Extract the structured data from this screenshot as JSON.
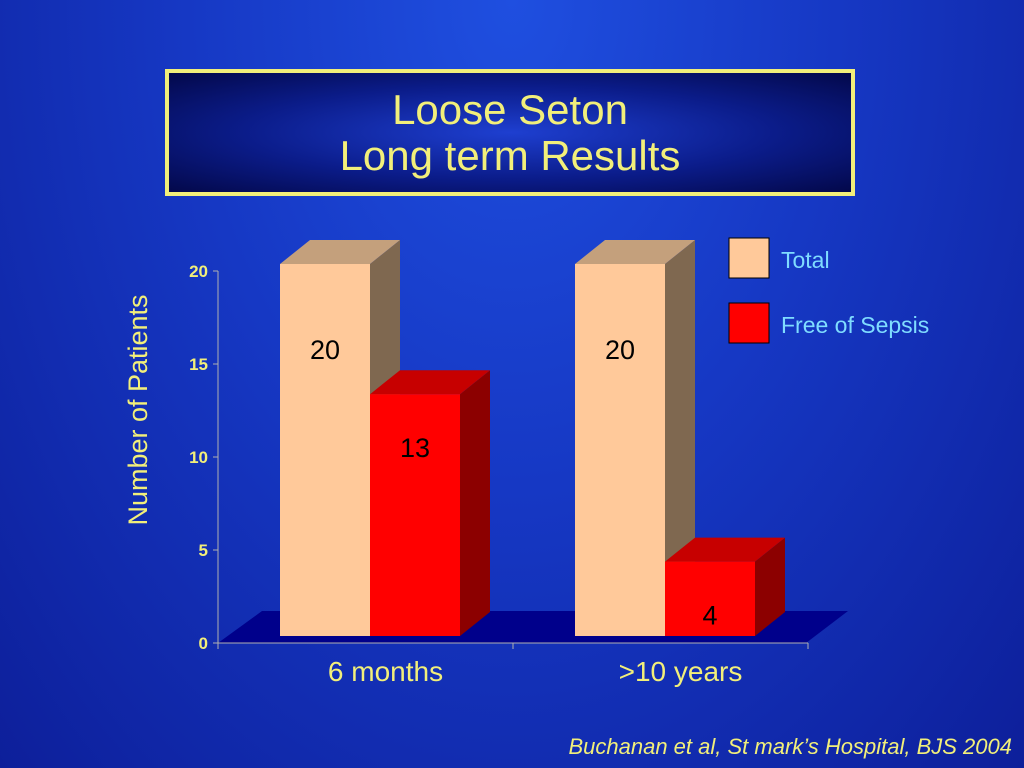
{
  "slide": {
    "title_line1": "Loose Seton",
    "title_line2": "Long term Results",
    "citation": "Buchanan et al, St mark’s Hospital, BJS 2004"
  },
  "chart_data": {
    "type": "bar",
    "categories": [
      "6 months",
      ">10 years"
    ],
    "series": [
      {
        "name": "Total",
        "values": [
          20,
          20
        ],
        "color": "#ffc99a"
      },
      {
        "name": "Free of Sepsis",
        "values": [
          13,
          4
        ],
        "color": "#ff0000"
      }
    ],
    "ylabel": "Number of Patients",
    "ylim": [
      0,
      20
    ],
    "yticks": [
      "0",
      "5",
      "10",
      "15",
      "20"
    ],
    "legend_position": "top-right",
    "style": "3d",
    "floor_color": "#00008b",
    "text_color": "#f2ef7a",
    "legend_text_color": "#7fdcff",
    "data_labels": true
  }
}
